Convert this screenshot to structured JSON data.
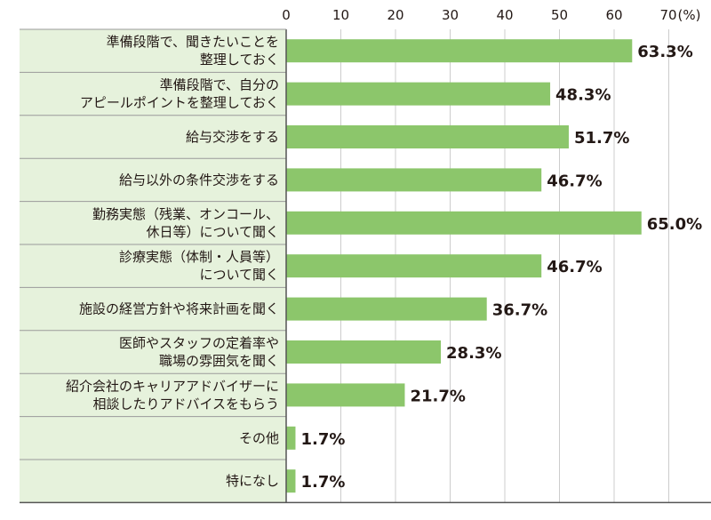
{
  "chart_data": {
    "type": "bar",
    "orientation": "horizontal",
    "title": "",
    "xlabel": "",
    "ylabel": "",
    "unit_label": "(%)",
    "xlim": [
      0,
      70
    ],
    "xticks": [
      0,
      10,
      20,
      30,
      40,
      50,
      60,
      70
    ],
    "grid": true,
    "categories": [
      [
        "準備段階で、聞きたいことを",
        "整理しておく"
      ],
      [
        "準備段階で、自分の",
        "アピールポイントを整理しておく"
      ],
      [
        "給与交渉をする"
      ],
      [
        "給与以外の条件交渉をする"
      ],
      [
        "勤務実態（残業、オンコール、",
        "休日等）について聞く"
      ],
      [
        "診療実態（体制・人員等）",
        "について聞く"
      ],
      [
        "施設の経営方針や将来計画を聞く"
      ],
      [
        "医師やスタッフの定着率や",
        "職場の雰囲気を聞く"
      ],
      [
        "紹介会社のキャリアアドバイザーに",
        "相談したりアドバイスをもらう"
      ],
      [
        "その他"
      ],
      [
        "特になし"
      ]
    ],
    "values": [
      63.3,
      48.3,
      51.7,
      46.7,
      65.0,
      46.7,
      36.7,
      28.3,
      21.7,
      1.7,
      1.7
    ],
    "value_labels": [
      "63.3%",
      "48.3%",
      "51.7%",
      "46.7%",
      "65.0%",
      "46.7%",
      "36.7%",
      "28.3%",
      "21.7%",
      "1.7%",
      "1.7%"
    ],
    "colors": {
      "bar": "#8cc66b",
      "label_bg": "#e6f2dc",
      "grid": "#cccccc",
      "axis": "#555555"
    }
  }
}
